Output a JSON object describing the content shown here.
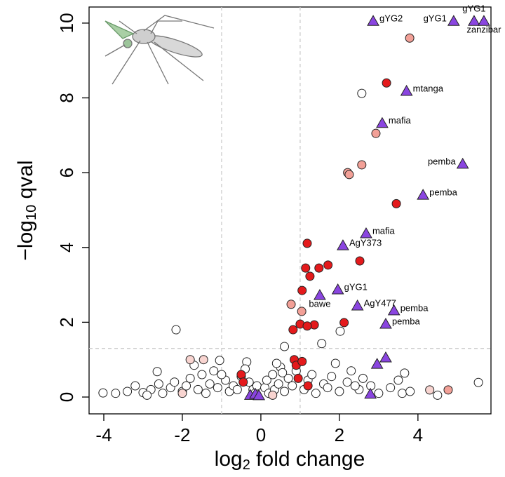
{
  "chart_data": {
    "type": "scatter",
    "xlabel": [
      "log",
      "2",
      " fold change"
    ],
    "ylabel": [
      "−log",
      "10",
      " qval"
    ],
    "xlim": [
      -4.375,
      5.86
    ],
    "ylim": [
      -0.45,
      10.43
    ],
    "xticks": [
      -4,
      -2,
      0,
      2,
      4
    ],
    "yticks": [
      0,
      2,
      4,
      6,
      8,
      10
    ],
    "vlines": [
      -1,
      1
    ],
    "hlines": [
      1.3
    ],
    "series": [
      {
        "marker": "circle",
        "color": "#ffffff",
        "x": [
          2.57,
          -2.16,
          2.02,
          1.55,
          0.6,
          3.66,
          -4.02,
          5.54,
          -2.64,
          -3.7,
          -3.4,
          -3.2,
          -3.0,
          -2.8,
          -2.6,
          -2.5,
          -2.3,
          -2.2,
          -2.0,
          -1.9,
          -1.8,
          -1.6,
          -1.5,
          -1.4,
          -1.3,
          -1.2,
          -1.1,
          -1.05,
          -0.9,
          -0.8,
          -0.7,
          -0.6,
          -0.5,
          -0.36,
          -0.3,
          -0.2,
          -0.15,
          -0.1,
          0.1,
          0.15,
          0.2,
          0.3,
          0.35,
          0.45,
          0.5,
          0.6,
          0.7,
          0.8,
          0.9,
          1.1,
          1.2,
          1.3,
          1.4,
          1.6,
          1.7,
          1.8,
          2.0,
          2.2,
          2.3,
          2.5,
          2.6,
          2.8,
          3.0,
          3.3,
          3.5,
          3.6,
          3.8,
          4.5,
          -1.0,
          -0.4,
          0.4,
          0.55,
          -2.9,
          -1.7,
          1.9,
          2.4
        ],
        "y": [
          8.12,
          1.8,
          1.76,
          1.43,
          1.35,
          0.64,
          0.11,
          0.39,
          0.68,
          0.1,
          0.15,
          0.3,
          0.12,
          0.2,
          0.35,
          0.1,
          0.25,
          0.4,
          0.15,
          0.3,
          0.5,
          0.2,
          0.6,
          0.1,
          0.35,
          0.7,
          0.25,
          0.98,
          0.45,
          0.15,
          0.3,
          0.2,
          0.55,
          0.94,
          0.4,
          0.2,
          0.1,
          0.3,
          0.25,
          0.45,
          0.1,
          0.6,
          0.2,
          0.35,
          0.8,
          0.15,
          0.5,
          0.3,
          0.7,
          0.2,
          0.45,
          0.6,
          0.1,
          0.35,
          0.25,
          0.55,
          0.15,
          0.4,
          0.7,
          0.2,
          0.5,
          0.3,
          0.1,
          0.25,
          0.45,
          0.1,
          0.15,
          0.05,
          0.6,
          0.75,
          0.9,
          0.65,
          0.05,
          0.85,
          0.9,
          0.3
        ]
      },
      {
        "marker": "circle",
        "color": "#f8d4d0",
        "x": [
          -1.8,
          -1.46,
          4.3,
          -2.0,
          0.3
        ],
        "y": [
          1.0,
          1.0,
          0.19,
          0.1,
          0.05
        ]
      },
      {
        "marker": "circle",
        "color": "#f2a097",
        "x": [
          3.79,
          2.93,
          2.57,
          2.21,
          2.25,
          0.77,
          1.04,
          4.77
        ],
        "y": [
          9.6,
          7.05,
          6.21,
          6.0,
          5.95,
          2.48,
          2.29,
          0.19
        ]
      },
      {
        "marker": "circle",
        "color": "#e41a1c",
        "x": [
          3.2,
          3.45,
          1.18,
          2.52,
          1.71,
          1.48,
          1.14,
          1.25,
          1.05,
          2.12,
          1.36,
          1.0,
          1.18,
          0.82,
          -0.5,
          -0.45,
          0.85,
          0.9,
          1.05,
          0.95,
          1.2
        ],
        "y": [
          8.4,
          5.17,
          4.11,
          3.64,
          3.53,
          3.45,
          3.45,
          3.23,
          2.85,
          1.99,
          1.93,
          1.95,
          1.9,
          1.8,
          0.6,
          0.4,
          1.0,
          0.85,
          0.95,
          0.5,
          0.3
        ]
      },
      {
        "marker": "triangle",
        "color": "#8a45e0",
        "x": [
          2.86,
          4.91,
          5.43,
          5.68,
          3.71,
          3.09,
          5.14,
          4.13,
          2.68,
          2.09,
          1.5,
          1.96,
          2.46,
          3.39,
          3.18,
          3.18,
          2.96,
          2.79,
          -0.27,
          -0.14,
          -0.05
        ],
        "y": [
          10.05,
          10.05,
          10.05,
          10.05,
          8.18,
          7.32,
          6.23,
          5.4,
          4.37,
          4.05,
          2.72,
          2.87,
          2.44,
          2.31,
          1.95,
          1.05,
          0.88,
          0.08,
          0.05,
          0.08,
          0.04
        ],
        "labels": [
          "gYG2",
          "gYG1",
          "gYG1",
          "zanzibar",
          "mtanga",
          "mafia",
          "pemba",
          "pemba",
          "mafia",
          "AgY373",
          "bawe",
          "gYG1",
          "AgY477",
          "pemba",
          "pemba",
          null,
          null,
          null,
          null,
          null,
          null
        ]
      }
    ]
  }
}
